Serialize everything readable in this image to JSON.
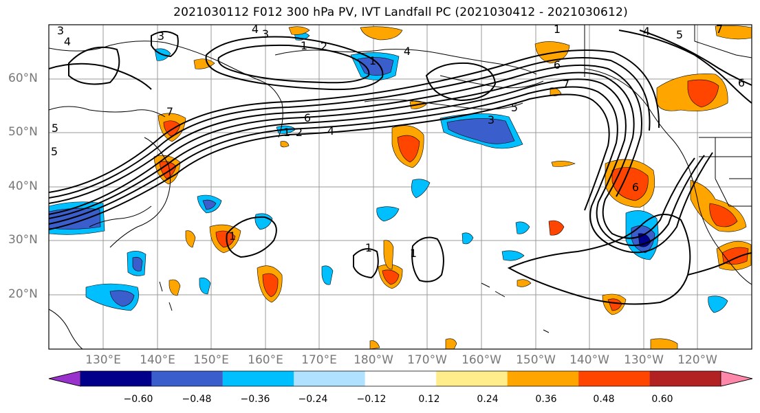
{
  "title": "2021030112 F012 300 hPa PV, IVT Landfall PC (2021030412 - 2021030612)",
  "lat_labels": [
    "60°N",
    "50°N",
    "40°N",
    "30°N",
    "20°N"
  ],
  "lon_labels": [
    "130°E",
    "140°E",
    "150°E",
    "160°E",
    "170°E",
    "180°W",
    "170°W",
    "160°W",
    "150°W",
    "140°W",
    "130°W",
    "120°W"
  ],
  "colorbar": {
    "ticks": [
      "−0.60",
      "−0.48",
      "−0.36",
      "−0.24",
      "−0.12",
      "0.12",
      "0.24",
      "0.36",
      "0.48",
      "0.60"
    ],
    "colors": [
      "#9932cc",
      "#00008b",
      "#3a5fcd",
      "#00bfff",
      "#b0e2ff",
      "#ffffff",
      "#ffec8b",
      "#ffa500",
      "#ff4500",
      "#b22222",
      "#ff88aa"
    ]
  },
  "contour_labels": [
    "3",
    "4",
    "3",
    "4",
    "3",
    "1",
    "2",
    "1",
    "4",
    "6",
    "7",
    "5",
    "6",
    "3",
    "5",
    "7",
    "1",
    "2",
    "4",
    "1",
    "5",
    "1",
    "1",
    "1",
    "6",
    "4",
    "7",
    "6",
    "5"
  ],
  "colors": {
    "land": "#000000",
    "grid": "#999999"
  }
}
